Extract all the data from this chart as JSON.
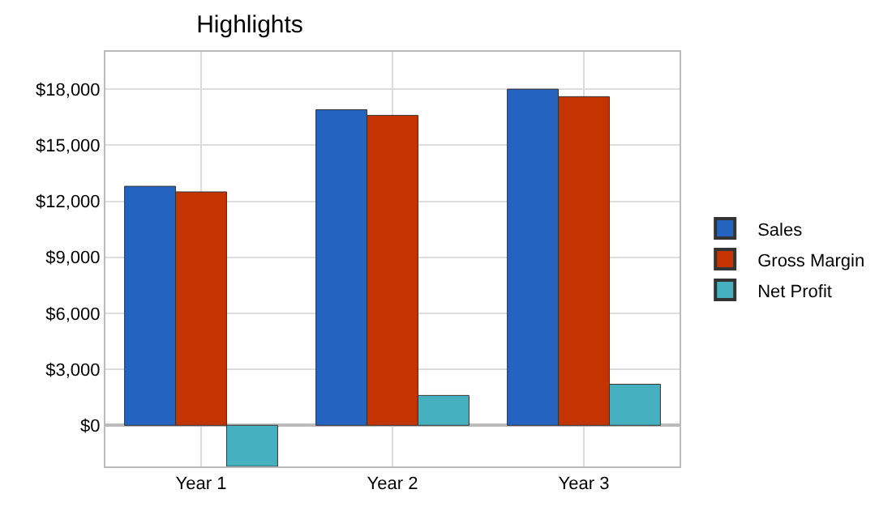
{
  "chart_data": {
    "type": "bar",
    "title": "Highlights",
    "categories": [
      "Year 1",
      "Year 2",
      "Year 3"
    ],
    "series": [
      {
        "name": "Sales",
        "color": "#2563c1",
        "values": [
          12800,
          16900,
          18000
        ]
      },
      {
        "name": "Gross Margin",
        "color": "#c43400",
        "values": [
          12500,
          16600,
          17600
        ]
      },
      {
        "name": "Net Profit",
        "color": "#45b0c0",
        "values": [
          -2200,
          1600,
          2200
        ]
      }
    ],
    "ylim": [
      -2200,
      20000
    ],
    "yticks": [
      {
        "value": 0,
        "label": "$0"
      },
      {
        "value": 3000,
        "label": "$3,000"
      },
      {
        "value": 6000,
        "label": "$6,000"
      },
      {
        "value": 9000,
        "label": "$9,000"
      },
      {
        "value": 12000,
        "label": "$12,000"
      },
      {
        "value": 15000,
        "label": "$15,000"
      },
      {
        "value": 18000,
        "label": "$18,000"
      }
    ],
    "grid": true,
    "legend": "right"
  }
}
